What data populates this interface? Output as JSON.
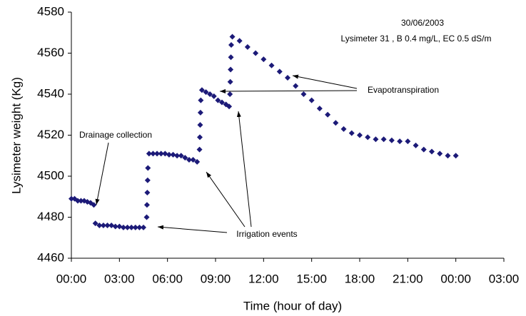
{
  "chart_data": {
    "type": "scatter",
    "ylabel": "Lysimeter weight (Kg)",
    "xlabel": "Time (hour of day)",
    "annotations": [
      "30/06/2003",
      "Lysimeter 31 , B 0.4 mg/L, EC 0.5 dS/m",
      "Evapotranspiration",
      "Drainage collection",
      "Irrigation events"
    ],
    "color": "#1c1a78",
    "x": [
      0,
      0.2,
      0.4,
      0.6,
      0.8,
      1.0,
      1.2,
      1.4,
      1.5,
      1.75,
      2.0,
      2.25,
      2.5,
      2.75,
      3.0,
      3.25,
      3.5,
      3.75,
      4.0,
      4.25,
      4.5,
      4.7,
      4.72,
      4.74,
      4.76,
      4.78,
      4.85,
      5.1,
      5.35,
      5.6,
      5.85,
      6.1,
      6.35,
      6.6,
      6.85,
      7.1,
      7.35,
      7.6,
      7.85,
      8.0,
      8.02,
      8.04,
      8.06,
      8.08,
      8.15,
      8.4,
      8.65,
      8.9,
      9.15,
      9.4,
      9.65,
      9.85,
      9.9,
      9.92,
      9.94,
      9.96,
      9.98,
      10.05,
      10.5,
      11,
      11.5,
      12,
      12.5,
      13,
      13.5,
      14,
      14.5,
      15,
      15.5,
      16,
      16.5,
      17,
      17.5,
      18,
      18.5,
      19,
      19.5,
      20,
      20.5,
      21,
      21.5,
      22,
      22.5,
      23,
      23.5,
      24
    ],
    "values": [
      4489,
      4489,
      4488,
      4488,
      4488,
      4487.5,
      4487,
      4486,
      4477,
      4476,
      4476,
      4476,
      4476,
      4475.5,
      4475.5,
      4475,
      4475,
      4475,
      4475,
      4475,
      4475,
      4480,
      4486,
      4492,
      4498,
      4504,
      4511,
      4511,
      4511,
      4511,
      4511,
      4510.5,
      4510.5,
      4510,
      4510,
      4509,
      4508,
      4508,
      4507,
      4513,
      4519,
      4525,
      4531,
      4537,
      4542,
      4541,
      4540,
      4539,
      4537,
      4536,
      4535,
      4534,
      4540,
      4546,
      4552,
      4558,
      4564,
      4568,
      4566,
      4563,
      4560,
      4557,
      4554,
      4551,
      4548,
      4544,
      4540,
      4537,
      4533,
      4530,
      4526,
      4523,
      4521,
      4520,
      4519,
      4518,
      4518,
      4517.5,
      4517,
      4517,
      4515,
      4513,
      4512,
      4511,
      4510,
      4510
    ],
    "xlim": [
      0,
      27
    ],
    "xticks": [
      {
        "value": 0,
        "label": "00:00"
      },
      {
        "value": 3,
        "label": "03:00"
      },
      {
        "value": 6,
        "label": "06:00"
      },
      {
        "value": 9,
        "label": "09:00"
      },
      {
        "value": 12,
        "label": "12:00"
      },
      {
        "value": 15,
        "label": "15:00"
      },
      {
        "value": 18,
        "label": "18:00"
      },
      {
        "value": 21,
        "label": "21:00"
      },
      {
        "value": 24,
        "label": "00:00"
      },
      {
        "value": 27,
        "label": "03:00"
      }
    ],
    "ylim": [
      4460,
      4580
    ],
    "yticks": [
      4460,
      4480,
      4500,
      4520,
      4540,
      4560,
      4580
    ],
    "grid": false
  }
}
